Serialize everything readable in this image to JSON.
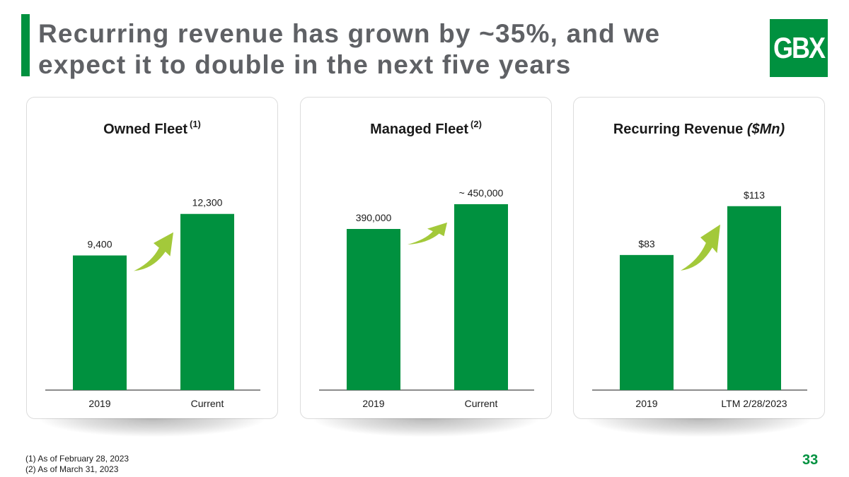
{
  "slide": {
    "title_line1": "Recurring revenue has grown by ~35%, and we",
    "title_line2": "expect it to double in the next five years",
    "logo_text": "GBX",
    "page_number": "33",
    "footnotes": [
      "(1)  As of February 28, 2023",
      "(2)  As of March 31, 2023"
    ]
  },
  "colors": {
    "bar": "#00913f",
    "arrow": "#a3c93a",
    "title": "#5f6165",
    "accent": "#00913f"
  },
  "chart_data": [
    {
      "type": "bar",
      "title": "Owned Fleet",
      "title_note": "(1)",
      "categories": [
        "2019",
        "Current"
      ],
      "values": [
        9400,
        12300
      ],
      "data_labels": [
        "9,400",
        "12,300"
      ],
      "ylim": [
        0,
        15000
      ]
    },
    {
      "type": "bar",
      "title": "Managed Fleet",
      "title_note": "(2)",
      "categories": [
        "2019",
        "Current"
      ],
      "values": [
        390000,
        450000
      ],
      "data_labels": [
        "390,000",
        "~ 450,000"
      ],
      "ylim": [
        0,
        520000
      ]
    },
    {
      "type": "bar",
      "title": "Recurring Revenue",
      "title_unit": "($Mn)",
      "categories": [
        "2019",
        "LTM 2/28/2023"
      ],
      "values": [
        83,
        113
      ],
      "data_labels": [
        "$83",
        "$113"
      ],
      "ylim": [
        0,
        132
      ]
    }
  ]
}
